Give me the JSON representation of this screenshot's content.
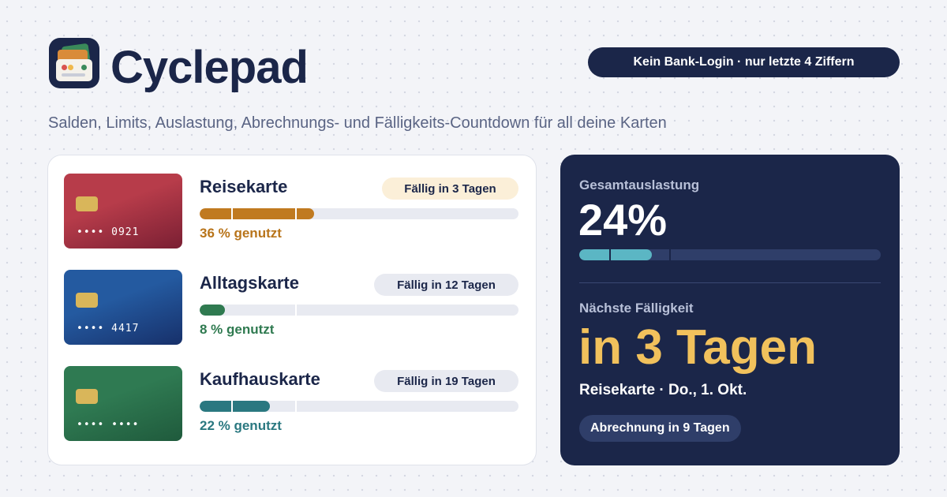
{
  "brand": {
    "name": "Cyclepad",
    "logo_icon": "wallet-cards-icon"
  },
  "header": {
    "badge": "Kein Bank-Login · nur letzte 4 Ziffern"
  },
  "tagline": "Salden, Limits, Auslastung, Abrechnungs- und Fälligkeits-Countdown für all deine Karten",
  "cards": [
    {
      "name": "Reisekarte",
      "number": "•••• 0921",
      "due_label": "Fällig in 3 Tagen",
      "usage_label": "36 % genutzt",
      "usage_fraction": 0.36,
      "card_gradient": [
        "#b73c4a",
        "#7a1f33"
      ],
      "bar_color": "#c07a20",
      "text_color": "#b8741a",
      "pill_bg": "#fbefd8",
      "pill_color": "#1b2649"
    },
    {
      "name": "Alltagskarte",
      "number": "•••• 4417",
      "due_label": "Fällig in 12 Tagen",
      "usage_label": "8 % genutzt",
      "usage_fraction": 0.08,
      "card_gradient": [
        "#245aa0",
        "#17306a"
      ],
      "bar_color": "#2f7a50",
      "text_color": "#2f7a50",
      "pill_bg": "#e8eaf1",
      "pill_color": "#1b2649"
    },
    {
      "name": "Kaufhauskarte",
      "number": "•••• ••••",
      "due_label": "Fällig in 19 Tagen",
      "usage_label": "22 % genutzt",
      "usage_fraction": 0.22,
      "card_gradient": [
        "#2f7a52",
        "#1f5a3c"
      ],
      "bar_color": "#2a7880",
      "text_color": "#2a7880",
      "pill_bg": "#e8eaf1",
      "pill_color": "#1b2649"
    }
  ],
  "summary": {
    "total_label": "Gesamtauslastung",
    "total_value": "24%",
    "total_fraction": 0.24,
    "next_label": "Nächste Fälligkeit",
    "next_value": "in 3 Tagen",
    "next_detail": "Reisekarte · Do., 1. Okt.",
    "billing_pill": "Abrechnung in 9 Tagen"
  },
  "colors": {
    "navy": "#1b2649",
    "accent_yellow": "#f1c15c",
    "accent_teal": "#5bb6c4"
  }
}
